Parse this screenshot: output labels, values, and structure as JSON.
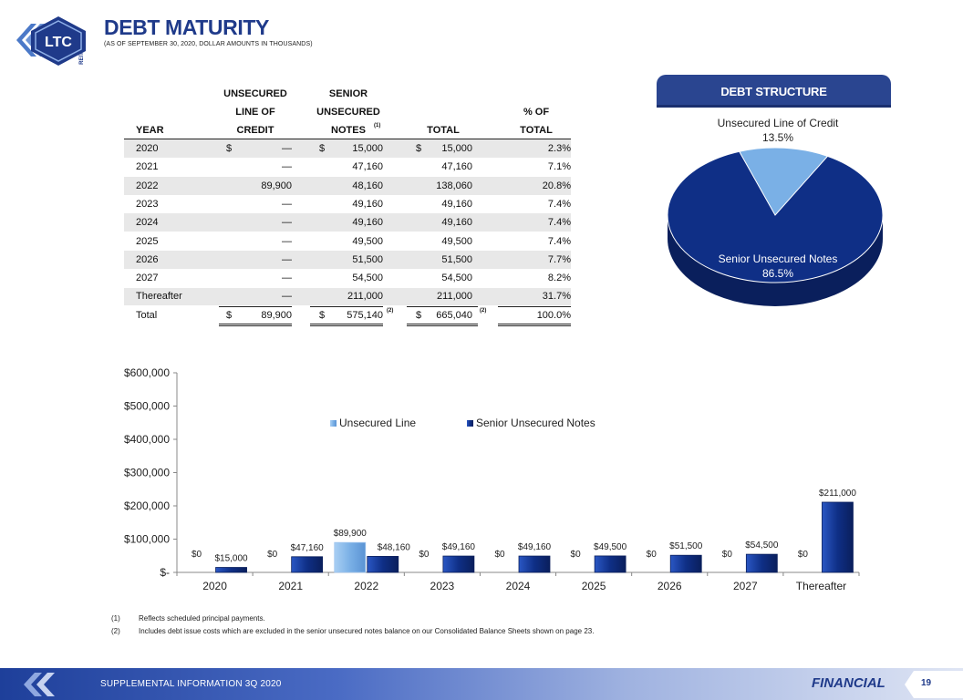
{
  "header": {
    "logo_text": "LTC",
    "logo_sub": "REIT",
    "title": "DEBT MATURITY",
    "subtitle": "(AS OF SEPTEMBER  30, 2020,  DOLLAR AMOUNTS  IN THOUSANDS)"
  },
  "table": {
    "headers": {
      "year": "YEAR",
      "credit": [
        "UNSECURED",
        "LINE OF",
        "CREDIT"
      ],
      "notes": [
        "SENIOR",
        "UNSECURED",
        "NOTES"
      ],
      "notes_sup": "(1)",
      "total": "TOTAL",
      "pct": [
        "% OF",
        "TOTAL"
      ]
    },
    "rows": [
      {
        "year": "2020",
        "credit_cur": "$",
        "credit": "—",
        "notes_cur": "$",
        "notes": "15,000",
        "total_cur": "$",
        "total": "15,000",
        "pct": "2.3%"
      },
      {
        "year": "2021",
        "credit_cur": "",
        "credit": "—",
        "notes_cur": "",
        "notes": "47,160",
        "total_cur": "",
        "total": "47,160",
        "pct": "7.1%"
      },
      {
        "year": "2022",
        "credit_cur": "",
        "credit": "89,900",
        "notes_cur": "",
        "notes": "48,160",
        "total_cur": "",
        "total": "138,060",
        "pct": "20.8%"
      },
      {
        "year": "2023",
        "credit_cur": "",
        "credit": "—",
        "notes_cur": "",
        "notes": "49,160",
        "total_cur": "",
        "total": "49,160",
        "pct": "7.4%"
      },
      {
        "year": "2024",
        "credit_cur": "",
        "credit": "—",
        "notes_cur": "",
        "notes": "49,160",
        "total_cur": "",
        "total": "49,160",
        "pct": "7.4%"
      },
      {
        "year": "2025",
        "credit_cur": "",
        "credit": "—",
        "notes_cur": "",
        "notes": "49,500",
        "total_cur": "",
        "total": "49,500",
        "pct": "7.4%"
      },
      {
        "year": "2026",
        "credit_cur": "",
        "credit": "—",
        "notes_cur": "",
        "notes": "51,500",
        "total_cur": "",
        "total": "51,500",
        "pct": "7.7%"
      },
      {
        "year": "2027",
        "credit_cur": "",
        "credit": "—",
        "notes_cur": "",
        "notes": "54,500",
        "total_cur": "",
        "total": "54,500",
        "pct": "8.2%"
      },
      {
        "year": "Thereafter",
        "credit_cur": "",
        "credit": "—",
        "notes_cur": "",
        "notes": "211,000",
        "total_cur": "",
        "total": "211,000",
        "pct": "31.7%"
      }
    ],
    "total_row": {
      "year": "Total",
      "credit_cur": "$",
      "credit": "89,900",
      "notes_cur": "$",
      "notes": "575,140",
      "notes_sup": "(2)",
      "total_cur": "$",
      "total": "665,040",
      "total_sup": "(2)",
      "pct": "100.0%"
    }
  },
  "debt_structure": {
    "title": "DEBT STRUCTURE"
  },
  "footnotes": [
    {
      "num": "(1)",
      "text": "Reflects  scheduled  principal  payments."
    },
    {
      "num": "(2)",
      "text": "Includes  debt  issue  costs  which  are  excluded  in  the  senior  unsecured  notes  balance  on  our  Consolidated  Balance  Sheets  shown  on  page  23."
    }
  ],
  "footer": {
    "left_text": "SUPPLEMENTAL INFORMATION  3Q 2020",
    "section": "FINANCIAL",
    "page": "19"
  },
  "colors": {
    "primary": "#1f3a8a",
    "senior_notes": "#0f2f86",
    "unsecured_line": "#7ab0e6"
  },
  "chart_data": [
    {
      "type": "pie",
      "title": "",
      "slices": [
        {
          "label": "Unsecured Line of Credit",
          "value": 13.5,
          "value_label": "13.5%",
          "color": "#7ab0e6"
        },
        {
          "label": "Senior Unsecured Notes",
          "value": 86.5,
          "value_label": "86.5%",
          "color": "#0f2f86"
        }
      ]
    },
    {
      "type": "bar",
      "title": "",
      "categories": [
        "2020",
        "2021",
        "2022",
        "2023",
        "2024",
        "2025",
        "2026",
        "2027",
        "Thereafter"
      ],
      "series": [
        {
          "name": "Unsecured Line",
          "color": "#7ab0e6",
          "values": [
            0,
            0,
            89900,
            0,
            0,
            0,
            0,
            0,
            0
          ],
          "labels": [
            "$0",
            "$0",
            "$89,900",
            "$0",
            "$0",
            "$0",
            "$0",
            "$0",
            "$0"
          ]
        },
        {
          "name": "Senior Unsecured Notes",
          "color": "#0f2f86",
          "values": [
            15000,
            47160,
            48160,
            49160,
            49160,
            49500,
            51500,
            54500,
            211000
          ],
          "labels": [
            "$15,000",
            "$47,160",
            "$48,160",
            "$49,160",
            "$49,160",
            "$49,500",
            "$51,500",
            "$54,500",
            "$211,000"
          ]
        }
      ],
      "ylim": [
        0,
        600000
      ],
      "y_ticks": [
        0,
        100000,
        200000,
        300000,
        400000,
        500000,
        600000
      ],
      "y_tick_labels": [
        "$-",
        "$100,000",
        "$200,000",
        "$300,000",
        "$400,000",
        "$500,000",
        "$600,000"
      ],
      "legend": "top-center",
      "grid": false
    }
  ]
}
